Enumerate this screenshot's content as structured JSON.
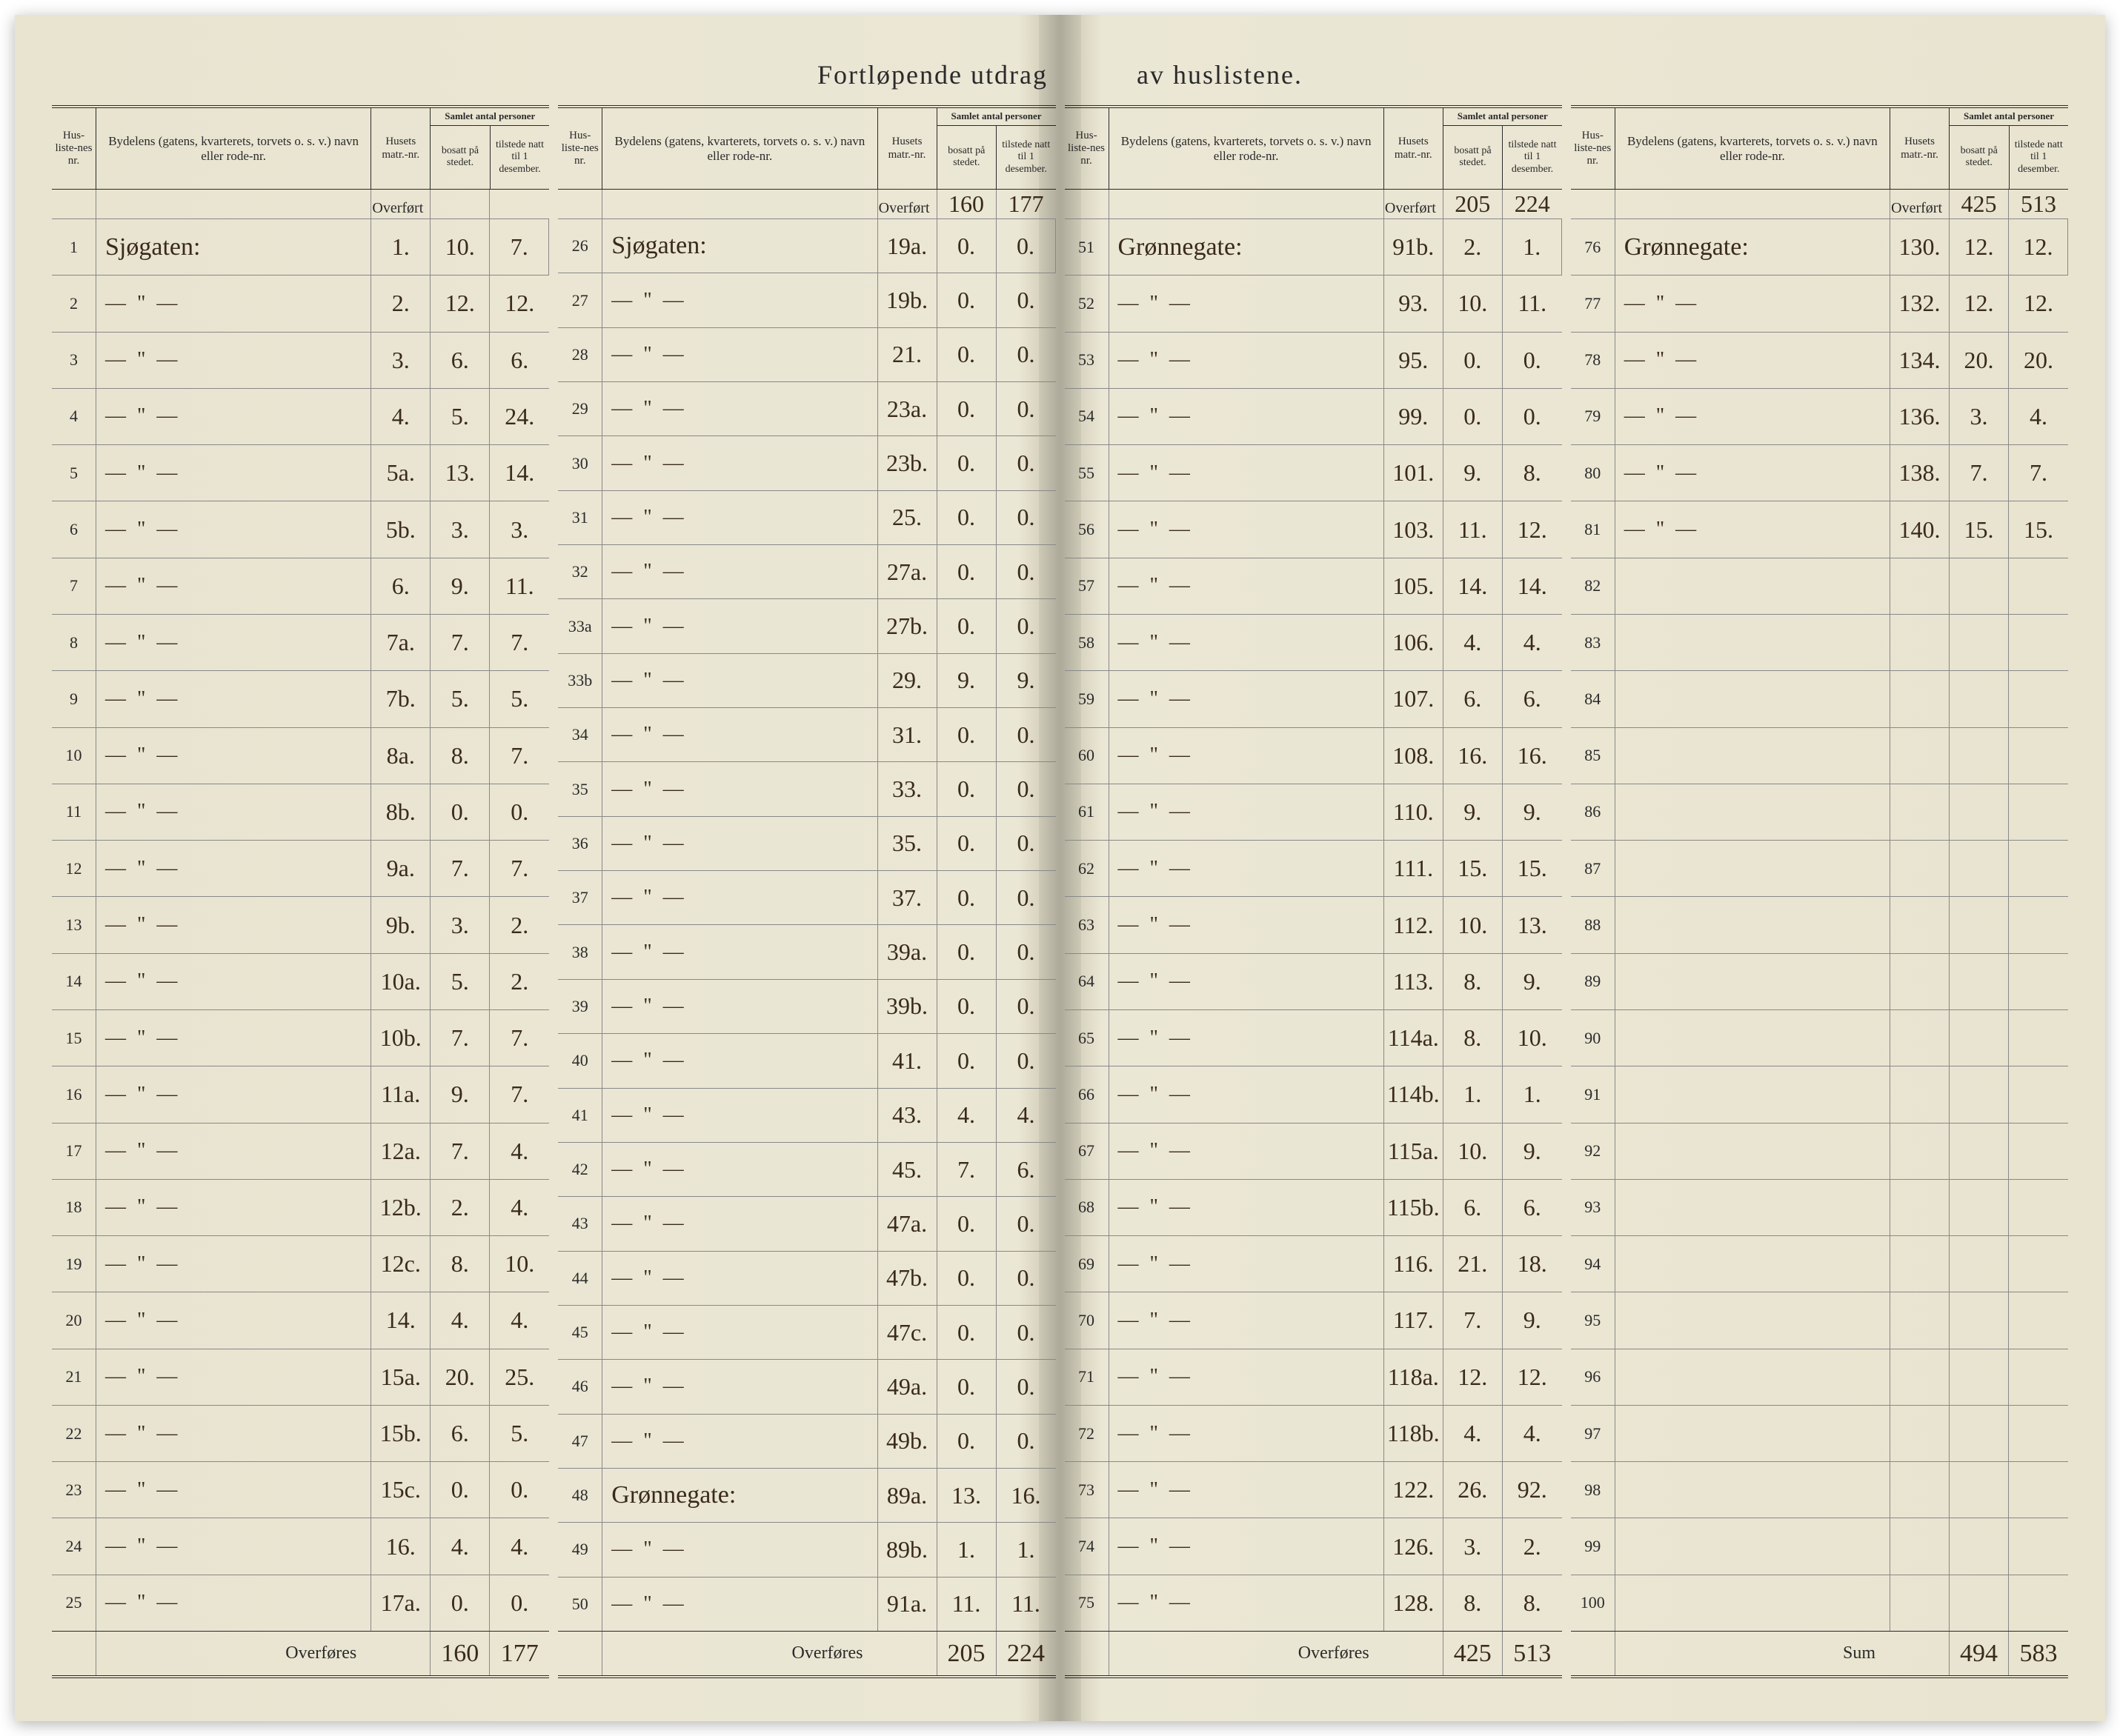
{
  "document": {
    "title_left": "Fortløpende utdrag",
    "title_right": "av huslistene.",
    "paper_color": "#e8e4d0",
    "ink_color": "#3a2a1a",
    "rule_color": "#2a2a2a",
    "handwriting_font": "Brush Script MT",
    "print_font": "Georgia"
  },
  "headers": {
    "nr": "Hus-liste-nes nr.",
    "bydel": "Bydelens (gatens, kvarterets, torvets o. s. v.) navn eller rode-nr.",
    "matr": "Husets matr.-nr.",
    "pers_top": "Samlet antal personer",
    "pers_a": "bosatt på stedet.",
    "pers_b": "tilstede natt til 1 desember.",
    "overfort": "Overført",
    "overfores": "Overføres",
    "sum": "Sum"
  },
  "panels": [
    {
      "carry_in": {
        "p1": "",
        "p2": ""
      },
      "rows": [
        {
          "nr": "1",
          "byd": "Sjøgaten:",
          "matr": "1.",
          "p1": "10.",
          "p2": "7."
        },
        {
          "nr": "2",
          "byd": "— \" —",
          "matr": "2.",
          "p1": "12.",
          "p2": "12."
        },
        {
          "nr": "3",
          "byd": "— \" —",
          "matr": "3.",
          "p1": "6.",
          "p2": "6."
        },
        {
          "nr": "4",
          "byd": "— \" —",
          "matr": "4.",
          "p1": "5.",
          "p2": "24."
        },
        {
          "nr": "5",
          "byd": "— \" —",
          "matr": "5a.",
          "p1": "13.",
          "p2": "14."
        },
        {
          "nr": "6",
          "byd": "— \" —",
          "matr": "5b.",
          "p1": "3.",
          "p2": "3."
        },
        {
          "nr": "7",
          "byd": "— \" —",
          "matr": "6.",
          "p1": "9.",
          "p2": "11."
        },
        {
          "nr": "8",
          "byd": "— \" —",
          "matr": "7a.",
          "p1": "7.",
          "p2": "7."
        },
        {
          "nr": "9",
          "byd": "— \" —",
          "matr": "7b.",
          "p1": "5.",
          "p2": "5."
        },
        {
          "nr": "10",
          "byd": "— \" —",
          "matr": "8a.",
          "p1": "8.",
          "p2": "7."
        },
        {
          "nr": "11",
          "byd": "— \" —",
          "matr": "8b.",
          "p1": "0.",
          "p2": "0."
        },
        {
          "nr": "12",
          "byd": "— \" —",
          "matr": "9a.",
          "p1": "7.",
          "p2": "7."
        },
        {
          "nr": "13",
          "byd": "— \" —",
          "matr": "9b.",
          "p1": "3.",
          "p2": "2."
        },
        {
          "nr": "14",
          "byd": "— \" —",
          "matr": "10a.",
          "p1": "5.",
          "p2": "2."
        },
        {
          "nr": "15",
          "byd": "— \" —",
          "matr": "10b.",
          "p1": "7.",
          "p2": "7."
        },
        {
          "nr": "16",
          "byd": "— \" —",
          "matr": "11a.",
          "p1": "9.",
          "p2": "7."
        },
        {
          "nr": "17",
          "byd": "— \" —",
          "matr": "12a.",
          "p1": "7.",
          "p2": "4."
        },
        {
          "nr": "18",
          "byd": "— \" —",
          "matr": "12b.",
          "p1": "2.",
          "p2": "4."
        },
        {
          "nr": "19",
          "byd": "— \" —",
          "matr": "12c.",
          "p1": "8.",
          "p2": "10."
        },
        {
          "nr": "20",
          "byd": "— \" —",
          "matr": "14.",
          "p1": "4.",
          "p2": "4."
        },
        {
          "nr": "21",
          "byd": "— \" —",
          "matr": "15a.",
          "p1": "20.",
          "p2": "25."
        },
        {
          "nr": "22",
          "byd": "— \" —",
          "matr": "15b.",
          "p1": "6.",
          "p2": "5."
        },
        {
          "nr": "23",
          "byd": "— \" —",
          "matr": "15c.",
          "p1": "0.",
          "p2": "0."
        },
        {
          "nr": "24",
          "byd": "— \" —",
          "matr": "16.",
          "p1": "4.",
          "p2": "4."
        },
        {
          "nr": "25",
          "byd": "— \" —",
          "matr": "17a.",
          "p1": "0.",
          "p2": "0."
        }
      ],
      "carry_out": {
        "label": "Overføres",
        "p1": "160",
        "p2": "177"
      }
    },
    {
      "carry_in": {
        "p1": "160",
        "p2": "177"
      },
      "rows": [
        {
          "nr": "26",
          "byd": "Sjøgaten:",
          "matr": "19a.",
          "p1": "0.",
          "p2": "0."
        },
        {
          "nr": "27",
          "byd": "— \" —",
          "matr": "19b.",
          "p1": "0.",
          "p2": "0."
        },
        {
          "nr": "28",
          "byd": "— \" —",
          "matr": "21.",
          "p1": "0.",
          "p2": "0."
        },
        {
          "nr": "29",
          "byd": "— \" —",
          "matr": "23a.",
          "p1": "0.",
          "p2": "0."
        },
        {
          "nr": "30",
          "byd": "— \" —",
          "matr": "23b.",
          "p1": "0.",
          "p2": "0."
        },
        {
          "nr": "31",
          "byd": "— \" —",
          "matr": "25.",
          "p1": "0.",
          "p2": "0."
        },
        {
          "nr": "32",
          "byd": "— \" —",
          "matr": "27a.",
          "p1": "0.",
          "p2": "0."
        },
        {
          "nr": "33a",
          "byd": "— \" —",
          "matr": "27b.",
          "p1": "0.",
          "p2": "0."
        },
        {
          "nr": "33b",
          "byd": "— \" —",
          "matr": "29.",
          "p1": "9.",
          "p2": "9."
        },
        {
          "nr": "34",
          "byd": "— \" —",
          "matr": "31.",
          "p1": "0.",
          "p2": "0."
        },
        {
          "nr": "35",
          "byd": "— \" —",
          "matr": "33.",
          "p1": "0.",
          "p2": "0."
        },
        {
          "nr": "36",
          "byd": "— \" —",
          "matr": "35.",
          "p1": "0.",
          "p2": "0."
        },
        {
          "nr": "37",
          "byd": "— \" —",
          "matr": "37.",
          "p1": "0.",
          "p2": "0."
        },
        {
          "nr": "38",
          "byd": "— \" —",
          "matr": "39a.",
          "p1": "0.",
          "p2": "0."
        },
        {
          "nr": "39",
          "byd": "— \" —",
          "matr": "39b.",
          "p1": "0.",
          "p2": "0."
        },
        {
          "nr": "40",
          "byd": "— \" —",
          "matr": "41.",
          "p1": "0.",
          "p2": "0."
        },
        {
          "nr": "41",
          "byd": "— \" —",
          "matr": "43.",
          "p1": "4.",
          "p2": "4."
        },
        {
          "nr": "42",
          "byd": "— \" —",
          "matr": "45.",
          "p1": "7.",
          "p2": "6."
        },
        {
          "nr": "43",
          "byd": "— \" —",
          "matr": "47a.",
          "p1": "0.",
          "p2": "0."
        },
        {
          "nr": "44",
          "byd": "— \" —",
          "matr": "47b.",
          "p1": "0.",
          "p2": "0."
        },
        {
          "nr": "45",
          "byd": "— \" —",
          "matr": "47c.",
          "p1": "0.",
          "p2": "0."
        },
        {
          "nr": "46",
          "byd": "— \" —",
          "matr": "49a.",
          "p1": "0.",
          "p2": "0."
        },
        {
          "nr": "47",
          "byd": "— \" —",
          "matr": "49b.",
          "p1": "0.",
          "p2": "0."
        },
        {
          "nr": "48",
          "byd": "Grønnegate:",
          "matr": "89a.",
          "p1": "13.",
          "p2": "16."
        },
        {
          "nr": "49",
          "byd": "— \" —",
          "matr": "89b.",
          "p1": "1.",
          "p2": "1."
        },
        {
          "nr": "50",
          "byd": "— \" —",
          "matr": "91a.",
          "p1": "11.",
          "p2": "11."
        }
      ],
      "carry_out": {
        "label": "Overføres",
        "p1": "205",
        "p2": "224"
      }
    },
    {
      "carry_in": {
        "p1": "205",
        "p2": "224"
      },
      "rows": [
        {
          "nr": "51",
          "byd": "Grønnegate:",
          "matr": "91b.",
          "p1": "2.",
          "p2": "1."
        },
        {
          "nr": "52",
          "byd": "— \" —",
          "matr": "93.",
          "p1": "10.",
          "p2": "11."
        },
        {
          "nr": "53",
          "byd": "— \" —",
          "matr": "95.",
          "p1": "0.",
          "p2": "0."
        },
        {
          "nr": "54",
          "byd": "— \" —",
          "matr": "99.",
          "p1": "0.",
          "p2": "0."
        },
        {
          "nr": "55",
          "byd": "— \" —",
          "matr": "101.",
          "p1": "9.",
          "p2": "8."
        },
        {
          "nr": "56",
          "byd": "— \" —",
          "matr": "103.",
          "p1": "11.",
          "p2": "12."
        },
        {
          "nr": "57",
          "byd": "— \" —",
          "matr": "105.",
          "p1": "14.",
          "p2": "14."
        },
        {
          "nr": "58",
          "byd": "— \" —",
          "matr": "106.",
          "p1": "4.",
          "p2": "4."
        },
        {
          "nr": "59",
          "byd": "— \" —",
          "matr": "107.",
          "p1": "6.",
          "p2": "6."
        },
        {
          "nr": "60",
          "byd": "— \" —",
          "matr": "108.",
          "p1": "16.",
          "p2": "16."
        },
        {
          "nr": "61",
          "byd": "— \" —",
          "matr": "110.",
          "p1": "9.",
          "p2": "9."
        },
        {
          "nr": "62",
          "byd": "— \" —",
          "matr": "111.",
          "p1": "15.",
          "p2": "15."
        },
        {
          "nr": "63",
          "byd": "— \" —",
          "matr": "112.",
          "p1": "10.",
          "p2": "13."
        },
        {
          "nr": "64",
          "byd": "— \" —",
          "matr": "113.",
          "p1": "8.",
          "p2": "9."
        },
        {
          "nr": "65",
          "byd": "— \" —",
          "matr": "114a.",
          "p1": "8.",
          "p2": "10."
        },
        {
          "nr": "66",
          "byd": "— \" —",
          "matr": "114b.",
          "p1": "1.",
          "p2": "1."
        },
        {
          "nr": "67",
          "byd": "— \" —",
          "matr": "115a.",
          "p1": "10.",
          "p2": "9."
        },
        {
          "nr": "68",
          "byd": "— \" —",
          "matr": "115b.",
          "p1": "6.",
          "p2": "6."
        },
        {
          "nr": "69",
          "byd": "— \" —",
          "matr": "116.",
          "p1": "21.",
          "p2": "18."
        },
        {
          "nr": "70",
          "byd": "— \" —",
          "matr": "117.",
          "p1": "7.",
          "p2": "9."
        },
        {
          "nr": "71",
          "byd": "— \" —",
          "matr": "118a.",
          "p1": "12.",
          "p2": "12."
        },
        {
          "nr": "72",
          "byd": "— \" —",
          "matr": "118b.",
          "p1": "4.",
          "p2": "4."
        },
        {
          "nr": "73",
          "byd": "— \" —",
          "matr": "122.",
          "p1": "26.",
          "p2": "92."
        },
        {
          "nr": "74",
          "byd": "— \" —",
          "matr": "126.",
          "p1": "3.",
          "p2": "2."
        },
        {
          "nr": "75",
          "byd": "— \" —",
          "matr": "128.",
          "p1": "8.",
          "p2": "8."
        }
      ],
      "carry_out": {
        "label": "Overføres",
        "p1": "425",
        "p2": "513"
      }
    },
    {
      "carry_in": {
        "p1": "425",
        "p2": "513"
      },
      "rows": [
        {
          "nr": "76",
          "byd": "Grønnegate:",
          "matr": "130.",
          "p1": "12.",
          "p2": "12."
        },
        {
          "nr": "77",
          "byd": "— \" —",
          "matr": "132.",
          "p1": "12.",
          "p2": "12."
        },
        {
          "nr": "78",
          "byd": "— \" —",
          "matr": "134.",
          "p1": "20.",
          "p2": "20."
        },
        {
          "nr": "79",
          "byd": "— \" —",
          "matr": "136.",
          "p1": "3.",
          "p2": "4."
        },
        {
          "nr": "80",
          "byd": "— \" —",
          "matr": "138.",
          "p1": "7.",
          "p2": "7."
        },
        {
          "nr": "81",
          "byd": "— \" —",
          "matr": "140.",
          "p1": "15.",
          "p2": "15."
        },
        {
          "nr": "82",
          "byd": "",
          "matr": "",
          "p1": "",
          "p2": ""
        },
        {
          "nr": "83",
          "byd": "",
          "matr": "",
          "p1": "",
          "p2": ""
        },
        {
          "nr": "84",
          "byd": "",
          "matr": "",
          "p1": "",
          "p2": ""
        },
        {
          "nr": "85",
          "byd": "",
          "matr": "",
          "p1": "",
          "p2": ""
        },
        {
          "nr": "86",
          "byd": "",
          "matr": "",
          "p1": "",
          "p2": ""
        },
        {
          "nr": "87",
          "byd": "",
          "matr": "",
          "p1": "",
          "p2": ""
        },
        {
          "nr": "88",
          "byd": "",
          "matr": "",
          "p1": "",
          "p2": ""
        },
        {
          "nr": "89",
          "byd": "",
          "matr": "",
          "p1": "",
          "p2": ""
        },
        {
          "nr": "90",
          "byd": "",
          "matr": "",
          "p1": "",
          "p2": ""
        },
        {
          "nr": "91",
          "byd": "",
          "matr": "",
          "p1": "",
          "p2": ""
        },
        {
          "nr": "92",
          "byd": "",
          "matr": "",
          "p1": "",
          "p2": ""
        },
        {
          "nr": "93",
          "byd": "",
          "matr": "",
          "p1": "",
          "p2": ""
        },
        {
          "nr": "94",
          "byd": "",
          "matr": "",
          "p1": "",
          "p2": ""
        },
        {
          "nr": "95",
          "byd": "",
          "matr": "",
          "p1": "",
          "p2": ""
        },
        {
          "nr": "96",
          "byd": "",
          "matr": "",
          "p1": "",
          "p2": ""
        },
        {
          "nr": "97",
          "byd": "",
          "matr": "",
          "p1": "",
          "p2": ""
        },
        {
          "nr": "98",
          "byd": "",
          "matr": "",
          "p1": "",
          "p2": ""
        },
        {
          "nr": "99",
          "byd": "",
          "matr": "",
          "p1": "",
          "p2": ""
        },
        {
          "nr": "100",
          "byd": "",
          "matr": "",
          "p1": "",
          "p2": ""
        }
      ],
      "carry_out": {
        "label": "Sum",
        "p1": "494",
        "p2": "583"
      }
    }
  ]
}
